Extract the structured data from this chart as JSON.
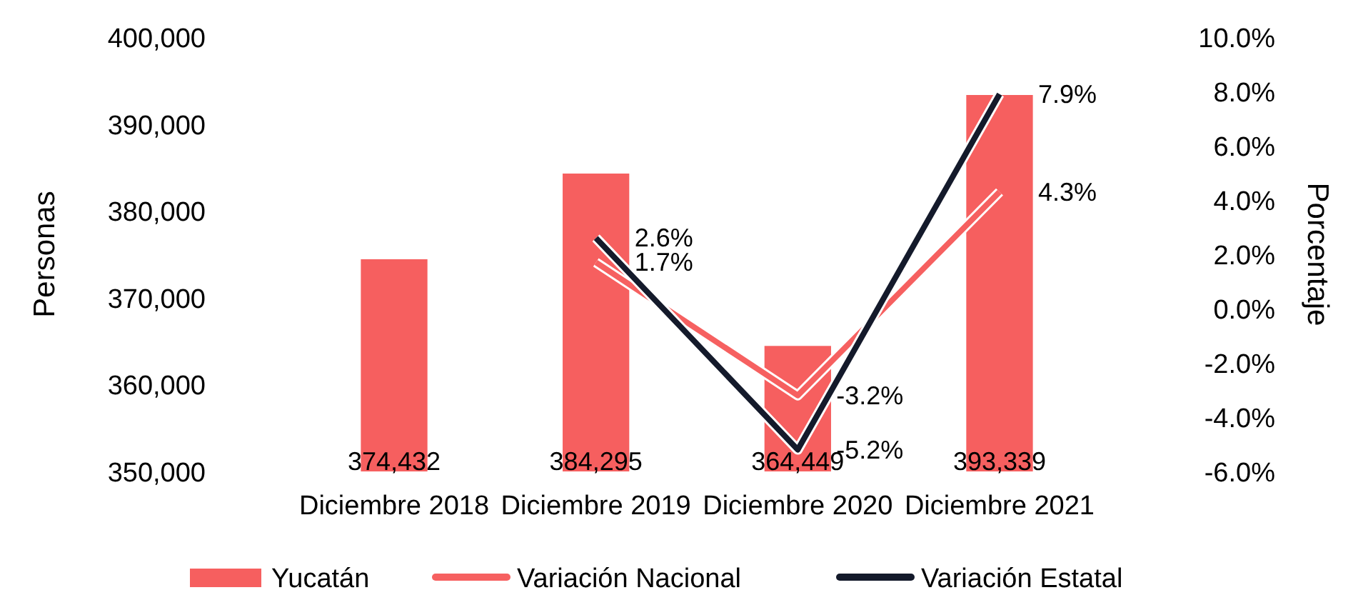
{
  "chart_data": {
    "type": "bar",
    "ylabel": "Personas",
    "y2label": "Porcentaje",
    "categories": [
      "Diciembre 2018",
      "Diciembre 2019",
      "Diciembre 2020",
      "Diciembre 2021"
    ],
    "series": [
      {
        "name": "Yucatán",
        "color": "#f65f5f",
        "values": [
          374432,
          384295,
          364449,
          393339
        ],
        "value_labels": [
          "374,432",
          "384,295",
          "364,449",
          "393,339"
        ]
      },
      {
        "name": "Variación Nacional",
        "type": "line",
        "axis": "y2",
        "color": "#f66060",
        "values": [
          null,
          1.7,
          -3.2,
          4.3
        ],
        "value_labels": [
          null,
          "1.7%",
          "-3.2%",
          "4.3%"
        ]
      },
      {
        "name": "Variación Estatal",
        "type": "line",
        "axis": "y2",
        "color": "#141a2b",
        "values": [
          null,
          2.6,
          -5.2,
          7.9
        ],
        "value_labels": [
          null,
          "2.6%",
          "-5.2%",
          "7.9%"
        ]
      }
    ],
    "ylim": [
      350000,
      400000
    ],
    "yticks": [
      {
        "value": 350000,
        "label": "350,000"
      },
      {
        "value": 360000,
        "label": "360,000"
      },
      {
        "value": 370000,
        "label": "370,000"
      },
      {
        "value": 380000,
        "label": "380,000"
      },
      {
        "value": 390000,
        "label": "390,000"
      },
      {
        "value": 400000,
        "label": "400,000"
      }
    ],
    "y2lim": [
      -6,
      10
    ],
    "y2ticks": [
      {
        "value": -6,
        "label": "-6.0%"
      },
      {
        "value": -4,
        "label": "-4.0%"
      },
      {
        "value": -2,
        "label": "-2.0%"
      },
      {
        "value": 0,
        "label": "0.0%"
      },
      {
        "value": 2,
        "label": "2.0%"
      },
      {
        "value": 4,
        "label": "4.0%"
      },
      {
        "value": 6,
        "label": "6.0%"
      },
      {
        "value": 8,
        "label": "8.0%"
      },
      {
        "value": 10,
        "label": "10.0%"
      }
    ],
    "legend": "bottom",
    "grid": false
  }
}
